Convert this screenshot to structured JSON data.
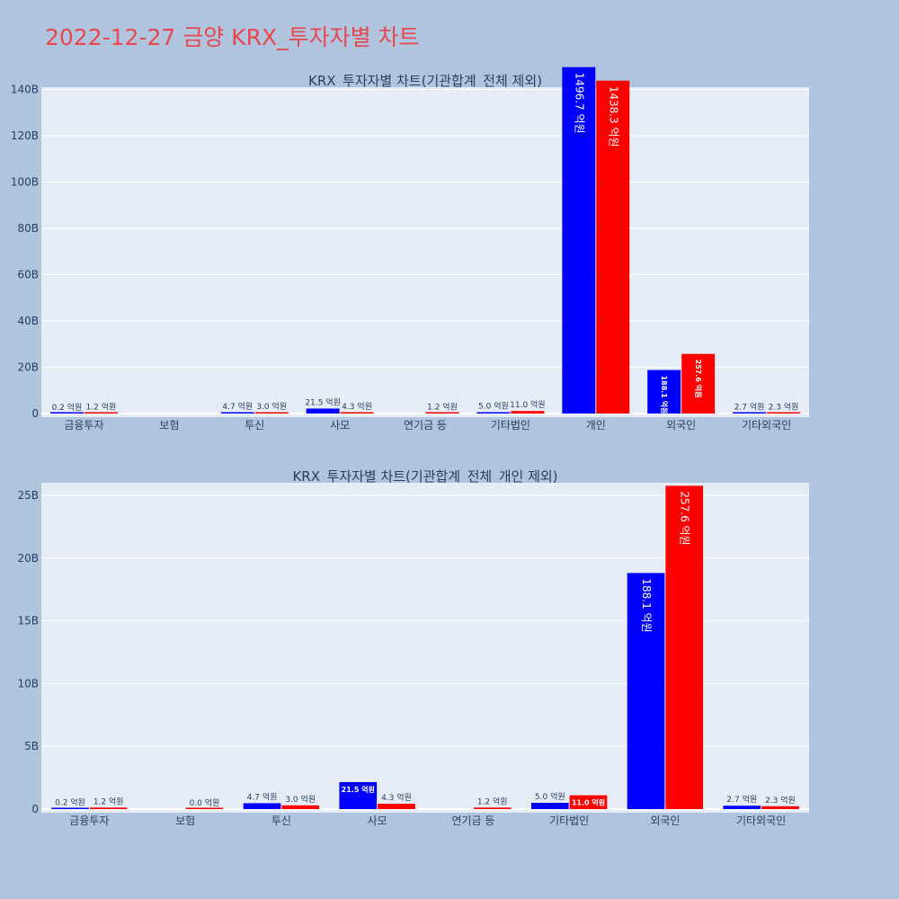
{
  "page": {
    "title": "2022-12-27 금양 KRX_투자자별 차트"
  },
  "colors": {
    "buy": "#0000ff",
    "sell": "#ff0000",
    "plot_bg": "#e5ecf6",
    "page_bg": "#b0c4de",
    "title": "#e8474f"
  },
  "chart_data": [
    {
      "type": "bar",
      "title": "KRX_투자자별 차트(기관합계_전체 제외)",
      "categories": [
        "금융투자",
        "보험",
        "투신",
        "사모",
        "연기금 등",
        "기타법인",
        "개인",
        "외국인",
        "기타외국인"
      ],
      "series": [
        {
          "values": [
            0.02,
            null,
            0.47,
            2.15,
            null,
            0.5,
            149.67,
            18.81,
            0.27
          ],
          "labels": [
            "0.2 억원",
            "",
            "4.7 억원",
            "21.5 억원",
            "",
            "5.0 억원",
            "1496.7 억원",
            "188.1 억원",
            "2.7 억원"
          ]
        },
        {
          "values": [
            0.12,
            null,
            0.3,
            0.43,
            0.12,
            1.1,
            143.83,
            25.76,
            0.23
          ],
          "labels": [
            "1.2 억원",
            "",
            "3.0 억원",
            "4.3 억원",
            "1.2 억원",
            "11.0 억원",
            "1438.3 억원",
            "257.6 억원",
            "2.3 억원"
          ]
        }
      ],
      "ylim": [
        0,
        141
      ],
      "yticks": [
        0,
        20,
        40,
        60,
        80,
        100,
        120,
        140
      ],
      "ytick_labels": [
        "0",
        "20B",
        "40B",
        "60B",
        "80B",
        "100B",
        "120B",
        "140B"
      ],
      "grid": true
    },
    {
      "type": "bar",
      "title": "KRX_투자자별 차트(기관합계_전체_개인 제외)",
      "categories": [
        "금융투자",
        "보험",
        "투신",
        "사모",
        "연기금 등",
        "기타법인",
        "외국인",
        "기타외국인"
      ],
      "series": [
        {
          "values": [
            0.02,
            null,
            0.47,
            2.15,
            null,
            0.5,
            18.81,
            0.27
          ],
          "labels": [
            "0.2 억원",
            "",
            "4.7 억원",
            "21.5 억원",
            "",
            "5.0 억원",
            "188.1 억원",
            "2.7 억원"
          ]
        },
        {
          "values": [
            0.12,
            0.0,
            0.3,
            0.43,
            0.12,
            1.1,
            25.76,
            0.23
          ],
          "labels": [
            "1.2 억원",
            "0.0 억원",
            "3.0 억원",
            "4.3 억원",
            "1.2 억원",
            "11.0 억원",
            "257.6 억원",
            "2.3 억원"
          ]
        }
      ],
      "ylim": [
        0,
        26
      ],
      "yticks": [
        0,
        5,
        10,
        15,
        20,
        25
      ],
      "ytick_labels": [
        "0",
        "5B",
        "10B",
        "15B",
        "20B",
        "25B"
      ],
      "grid": true
    }
  ]
}
